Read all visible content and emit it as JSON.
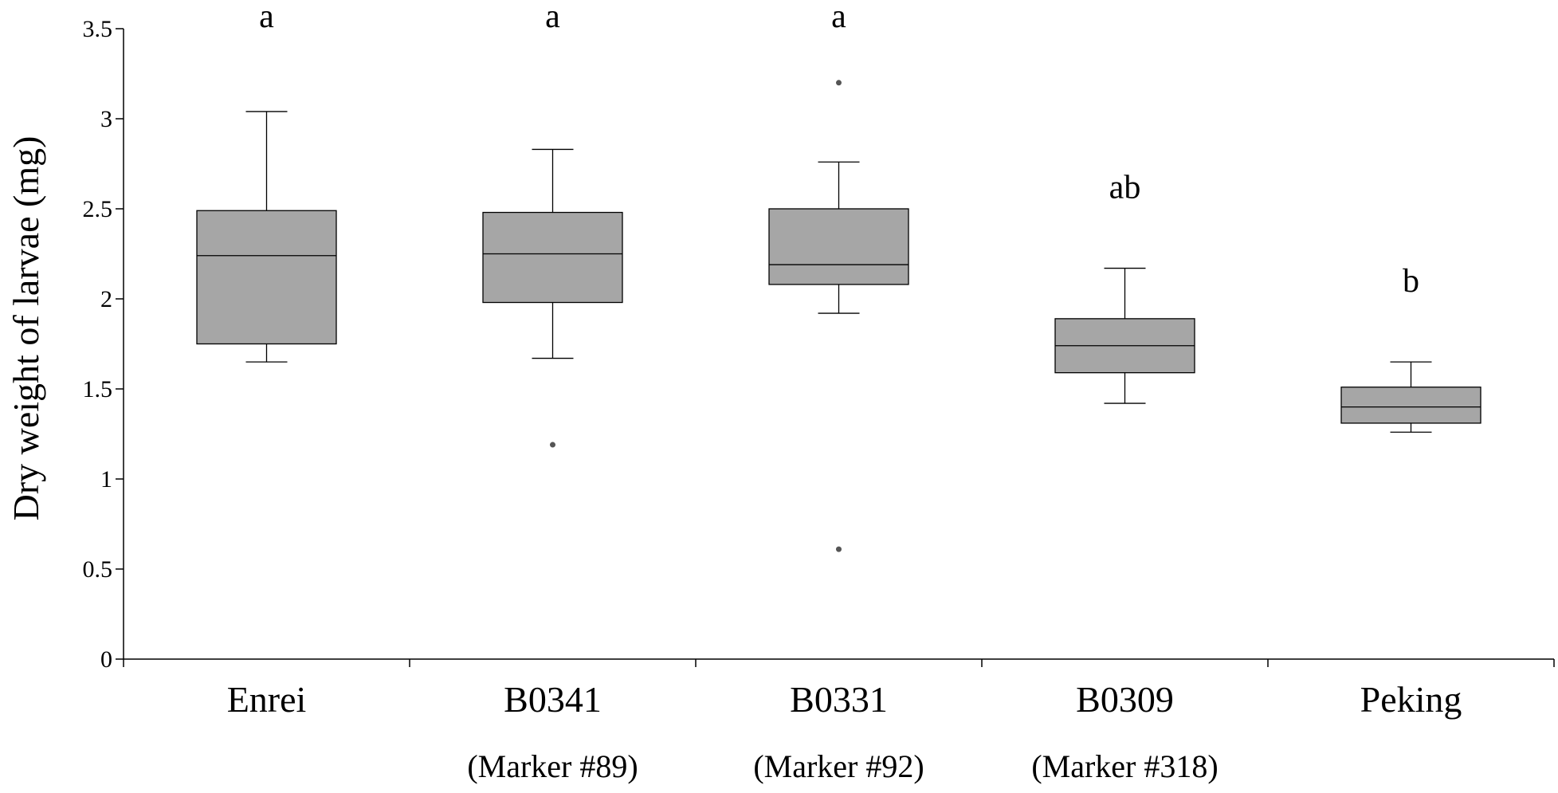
{
  "chart_data": {
    "type": "box",
    "title": "",
    "xlabel": "",
    "ylabel": "Dry weight of larvae (mg)",
    "ylim": [
      0,
      3.5
    ],
    "yticks": [
      0,
      0.5,
      1,
      1.5,
      2,
      2.5,
      3,
      3.5
    ],
    "ytick_labels": [
      "0",
      "0.5",
      "1",
      "1.5",
      "2",
      "2.5",
      "3",
      "3.5"
    ],
    "grid": false,
    "legend": "none",
    "box_color": "#a6a6a6",
    "categories": [
      {
        "name": "Enrei",
        "sub": "",
        "significance": "a",
        "whisker_low": 1.65,
        "q1": 1.75,
        "median": 2.24,
        "q3": 2.49,
        "whisker_high": 3.04,
        "outliers": []
      },
      {
        "name": "B0341",
        "sub": "(Marker #89)",
        "significance": "a",
        "whisker_low": 1.67,
        "q1": 1.98,
        "median": 2.25,
        "q3": 2.48,
        "whisker_high": 2.83,
        "outliers": [
          1.19
        ]
      },
      {
        "name": "B0331",
        "sub": "(Marker #92)",
        "significance": "a",
        "whisker_low": 1.92,
        "q1": 2.08,
        "median": 2.19,
        "q3": 2.5,
        "whisker_high": 2.76,
        "outliers": [
          3.2,
          0.61
        ]
      },
      {
        "name": "B0309",
        "sub": "(Marker #318)",
        "significance": "ab",
        "whisker_low": 1.42,
        "q1": 1.59,
        "median": 1.74,
        "q3": 1.89,
        "whisker_high": 2.17,
        "outliers": []
      },
      {
        "name": "Peking",
        "sub": "",
        "significance": "b",
        "whisker_low": 1.26,
        "q1": 1.31,
        "median": 1.4,
        "q3": 1.51,
        "whisker_high": 1.65,
        "outliers": []
      }
    ]
  }
}
